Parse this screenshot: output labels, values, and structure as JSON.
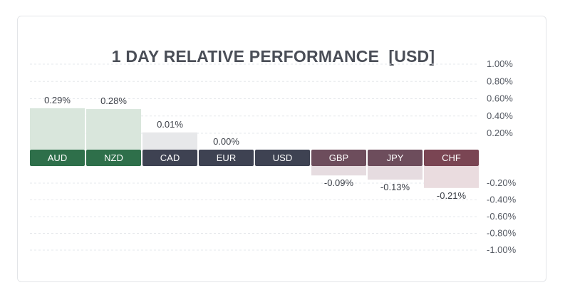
{
  "title": "1 DAY RELATIVE PERFORMANCE  [USD]",
  "chart_data": {
    "type": "bar",
    "title": "1 DAY RELATIVE PERFORMANCE  [USD]",
    "categories": [
      "AUD",
      "NZD",
      "CAD",
      "EUR",
      "USD",
      "GBP",
      "JPY",
      "CHF"
    ],
    "values": [
      0.29,
      0.28,
      0.01,
      0.0,
      0.0,
      -0.09,
      -0.13,
      -0.21
    ],
    "value_labels": [
      "0.29%",
      "0.28%",
      "0.01%",
      "0.00%",
      "",
      "-0.09%",
      "-0.13%",
      "-0.21%"
    ],
    "unit": "%",
    "ylim": [
      -1.0,
      1.0
    ],
    "y_ticks_positive": [
      "1.00%",
      "0.80%",
      "0.60%",
      "0.40%",
      "0.20%"
    ],
    "y_ticks_negative": [
      "-0.20%",
      "-0.40%",
      "-0.60%",
      "-0.80%",
      "-1.00%"
    ],
    "y_tick_values_positive": [
      1.0,
      0.8,
      0.6,
      0.4,
      0.2
    ],
    "y_tick_values_negative": [
      -0.2,
      -0.4,
      -0.6,
      -0.8,
      -1.0
    ],
    "grid": true,
    "label_colors": [
      "#2e6f4a",
      "#2e6f4a",
      "#3e4252",
      "#3e4252",
      "#3e4252",
      "#6d4d5c",
      "#6d4d5c",
      "#7a4553"
    ],
    "bar_colors": [
      "#d9e6dc",
      "#d9e6dc",
      "#e7e8ea",
      "#e7e8ea",
      "#e7e8ea",
      "#e6dce0",
      "#e6dce0",
      "#eadcdf"
    ]
  }
}
